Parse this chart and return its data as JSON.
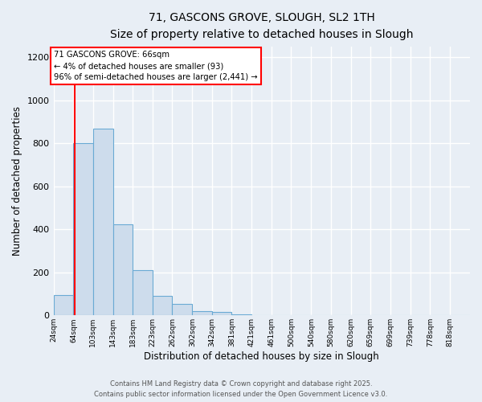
{
  "title": "71, GASCONS GROVE, SLOUGH, SL2 1TH",
  "subtitle": "Size of property relative to detached houses in Slough",
  "xlabel": "Distribution of detached houses by size in Slough",
  "ylabel": "Number of detached properties",
  "bar_values": [
    93,
    800,
    868,
    425,
    210,
    90,
    52,
    20,
    15,
    5,
    0,
    0,
    0,
    0,
    0,
    0,
    0,
    0,
    0,
    0,
    2
  ],
  "bin_edges": [
    24,
    64,
    103,
    143,
    183,
    223,
    262,
    302,
    342,
    381,
    421,
    461,
    500,
    540,
    580,
    620,
    659,
    699,
    739,
    778,
    818,
    858
  ],
  "tick_labels": [
    "24sqm",
    "64sqm",
    "103sqm",
    "143sqm",
    "183sqm",
    "223sqm",
    "262sqm",
    "302sqm",
    "342sqm",
    "381sqm",
    "421sqm",
    "461sqm",
    "500sqm",
    "540sqm",
    "580sqm",
    "620sqm",
    "659sqm",
    "699sqm",
    "739sqm",
    "778sqm",
    "818sqm"
  ],
  "bar_color": "#cddcec",
  "bar_edge_color": "#6aaad4",
  "bg_color": "#e8eef5",
  "plot_bg_color": "#e8eef5",
  "grid_color": "#ffffff",
  "red_line_x": 66,
  "ylim": [
    0,
    1250
  ],
  "yticks": [
    0,
    200,
    400,
    600,
    800,
    1000,
    1200
  ],
  "annotation_line1": "71 GASCONS GROVE: 66sqm",
  "annotation_line2": "← 4% of detached houses are smaller (93)",
  "annotation_line3": "96% of semi-detached houses are larger (2,441) →",
  "footer1": "Contains HM Land Registry data © Crown copyright and database right 2025.",
  "footer2": "Contains public sector information licensed under the Open Government Licence v3.0."
}
